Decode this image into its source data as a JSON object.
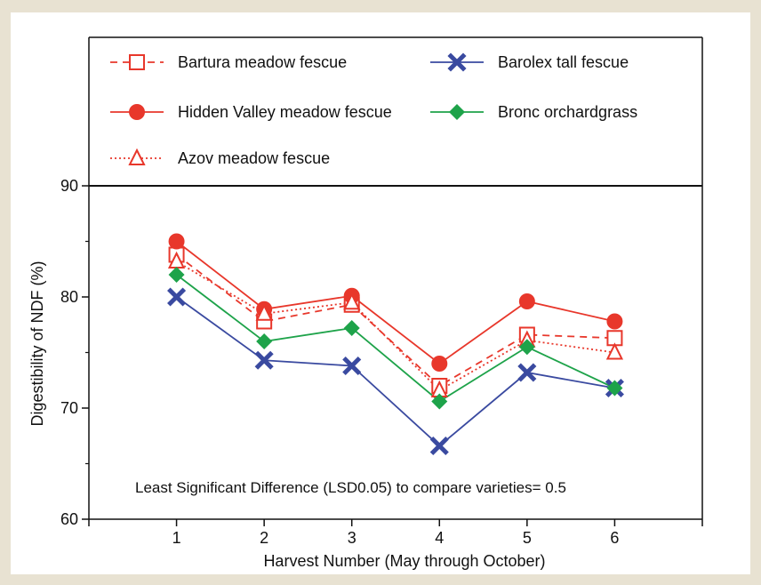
{
  "chart_data": {
    "type": "line",
    "title": "",
    "xlabel": "Harvest Number (May through October)",
    "ylabel": "Digestibility of NDF (%)",
    "x": [
      1,
      2,
      3,
      4,
      5,
      6
    ],
    "xlim": [
      0,
      7
    ],
    "ylim": [
      60,
      90
    ],
    "y_ticks": [
      60,
      70,
      80,
      90
    ],
    "grid": false,
    "legend_position": "top, inside box above plot",
    "annotation": "Least Significant Difference (LSD0.05) to compare varieties= 0.5",
    "series": [
      {
        "name": "Bartura meadow fescue",
        "values": [
          83.8,
          77.8,
          79.3,
          72.0,
          76.6,
          76.3
        ],
        "color": "#e8372b",
        "marker": "open-square",
        "line_style": "dashed"
      },
      {
        "name": "Hidden Valley meadow fescue",
        "values": [
          85.0,
          78.9,
          80.1,
          74.0,
          79.6,
          77.8
        ],
        "color": "#e8372b",
        "marker": "filled-circle",
        "line_style": "solid"
      },
      {
        "name": "Azov meadow fescue",
        "values": [
          83.2,
          78.5,
          79.5,
          71.6,
          76.1,
          75.0
        ],
        "color": "#e8372b",
        "marker": "open-triangle",
        "line_style": "dotted"
      },
      {
        "name": "Barolex tall fescue",
        "values": [
          80.0,
          74.3,
          73.8,
          66.6,
          73.2,
          71.8
        ],
        "color": "#3a4aa0",
        "marker": "x-mark",
        "line_style": "solid"
      },
      {
        "name": "Bronc orchardgrass",
        "values": [
          82.0,
          76.0,
          77.2,
          70.6,
          75.5,
          71.8
        ],
        "color": "#1ea34a",
        "marker": "filled-diamond",
        "line_style": "solid"
      }
    ]
  }
}
